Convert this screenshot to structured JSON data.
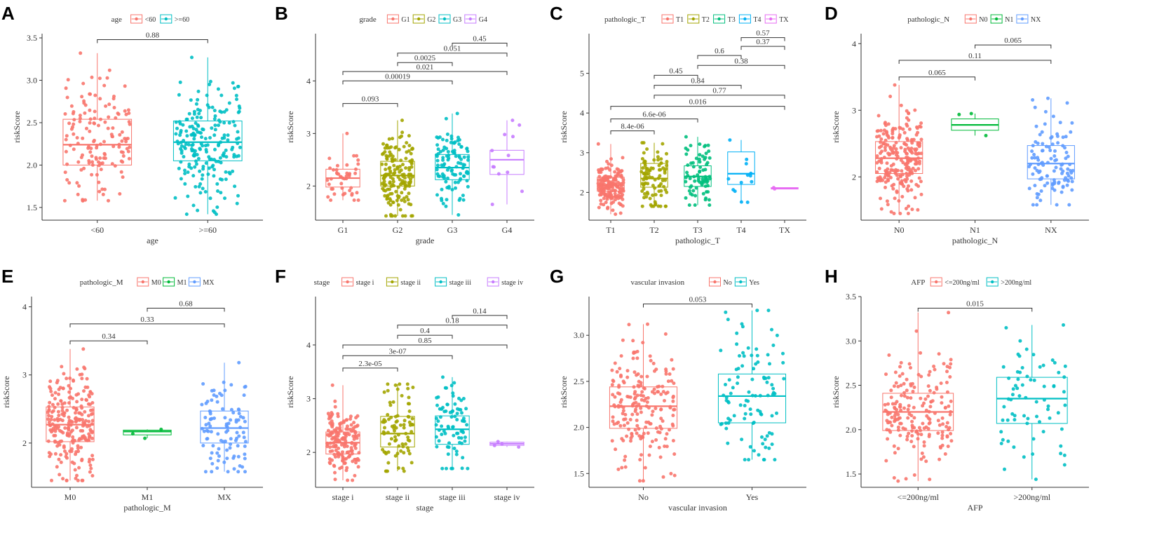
{
  "colors": {
    "red": "#F8766D",
    "olive": "#A3A500",
    "green": "#00BF7D",
    "green3": "#00BA38",
    "teal": "#00BFC4",
    "blue": "#00B0F6",
    "blue3": "#619CFF",
    "purple": "#C77CFF",
    "magenta": "#E76BF3"
  },
  "chart_data": [
    {
      "panel": "A",
      "type": "boxplot",
      "legend_title": "age",
      "xlabel": "age",
      "ylabel": "riskScore",
      "ylim": [
        1.35,
        3.55
      ],
      "yticks": [
        1.5,
        2.0,
        2.5,
        3.0,
        3.5
      ],
      "ytick_labels": [
        "1.5",
        "2.0",
        "2.5",
        "3.0",
        "3.5"
      ],
      "categories": [
        "<60",
        ">=60"
      ],
      "color_keys": [
        "red",
        "teal"
      ],
      "boxes": [
        {
          "q1": 2.0,
          "median": 2.24,
          "q3": 2.54,
          "lo": 1.58,
          "hi": 3.32,
          "n": 150
        },
        {
          "q1": 2.05,
          "median": 2.27,
          "q3": 2.52,
          "lo": 1.42,
          "hi": 3.27,
          "n": 210
        }
      ],
      "comparisons": [
        {
          "a": 0,
          "b": 1,
          "label": "0.88",
          "y": 3.48
        }
      ]
    },
    {
      "panel": "B",
      "type": "boxplot",
      "legend_title": "grade",
      "xlabel": "grade",
      "ylabel": "riskScore",
      "ylim": [
        1.35,
        4.9
      ],
      "yticks": [
        2,
        3,
        4
      ],
      "ytick_labels": [
        "2",
        "3",
        "4"
      ],
      "categories": [
        "G1",
        "G2",
        "G3",
        "G4"
      ],
      "color_keys": [
        "red",
        "olive",
        "teal",
        "purple"
      ],
      "boxes": [
        {
          "q1": 1.98,
          "median": 2.15,
          "q3": 2.32,
          "lo": 1.73,
          "hi": 3.0,
          "n": 45
        },
        {
          "q1": 2.0,
          "median": 2.2,
          "q3": 2.47,
          "lo": 1.43,
          "hi": 3.25,
          "n": 170
        },
        {
          "q1": 2.12,
          "median": 2.35,
          "q3": 2.6,
          "lo": 1.45,
          "hi": 3.38,
          "n": 110
        },
        {
          "q1": 2.22,
          "median": 2.5,
          "q3": 2.68,
          "lo": 1.65,
          "hi": 3.25,
          "n": 12
        }
      ],
      "comparisons": [
        {
          "a": 0,
          "b": 1,
          "label": "0.093",
          "y": 3.57
        },
        {
          "a": 0,
          "b": 2,
          "label": "0.00019",
          "y": 4.0
        },
        {
          "a": 0,
          "b": 3,
          "label": "0.021",
          "y": 4.18
        },
        {
          "a": 1,
          "b": 2,
          "label": "0.0025",
          "y": 4.35
        },
        {
          "a": 1,
          "b": 3,
          "label": "0.051",
          "y": 4.53
        },
        {
          "a": 2,
          "b": 3,
          "label": "0.45",
          "y": 4.72
        }
      ]
    },
    {
      "panel": "C",
      "type": "boxplot",
      "legend_title": "pathologic_T",
      "xlabel": "pathologic_T",
      "ylabel": "riskScore",
      "ylim": [
        1.3,
        6.0
      ],
      "yticks": [
        2,
        3,
        4,
        5
      ],
      "ytick_labels": [
        "2",
        "3",
        "4",
        "5"
      ],
      "categories": [
        "T1",
        "T2",
        "T3",
        "T4",
        "TX"
      ],
      "color_keys": [
        "red",
        "olive",
        "green",
        "blue",
        "magenta"
      ],
      "boxes": [
        {
          "q1": 2.03,
          "median": 2.18,
          "q3": 2.38,
          "lo": 1.45,
          "hi": 3.22,
          "n": 180
        },
        {
          "q1": 2.13,
          "median": 2.35,
          "q3": 2.73,
          "lo": 1.65,
          "hi": 3.25,
          "n": 90
        },
        {
          "q1": 2.15,
          "median": 2.4,
          "q3": 2.67,
          "lo": 1.68,
          "hi": 3.4,
          "n": 75
        },
        {
          "q1": 2.2,
          "median": 2.47,
          "q3": 3.02,
          "lo": 1.75,
          "hi": 3.32,
          "n": 13
        },
        {
          "q1": 2.1,
          "median": 2.1,
          "q3": 2.12,
          "lo": 2.09,
          "hi": 2.12,
          "n": 2
        }
      ],
      "comparisons": [
        {
          "a": 0,
          "b": 1,
          "label": "8.4e-06",
          "y": 3.55
        },
        {
          "a": 0,
          "b": 2,
          "label": "6.6e-06",
          "y": 3.85
        },
        {
          "a": 0,
          "b": 4,
          "label": "0.016",
          "y": 4.17
        },
        {
          "a": 1,
          "b": 4,
          "label": "0.77",
          "y": 4.45
        },
        {
          "a": 1,
          "b": 3,
          "label": "0.84",
          "y": 4.7
        },
        {
          "a": 1,
          "b": 2,
          "label": "0.45",
          "y": 4.95
        },
        {
          "a": 2,
          "b": 4,
          "label": "0.38",
          "y": 5.2
        },
        {
          "a": 2,
          "b": 3,
          "label": "0.6",
          "y": 5.45
        },
        {
          "a": 3,
          "b": 4,
          "label": "0.37",
          "y": 5.68
        },
        {
          "a": 3,
          "b": 4,
          "label": "0.57",
          "y": 5.9
        }
      ]
    },
    {
      "panel": "D",
      "type": "boxplot",
      "legend_title": "pathologic_N",
      "xlabel": "pathologic_N",
      "ylabel": "riskScore",
      "ylim": [
        1.35,
        4.15
      ],
      "yticks": [
        2,
        3,
        4
      ],
      "ytick_labels": [
        "2",
        "3",
        "4"
      ],
      "categories": [
        "N0",
        "N1",
        "NX"
      ],
      "color_keys": [
        "red",
        "green3",
        "blue3"
      ],
      "boxes": [
        {
          "q1": 2.05,
          "median": 2.28,
          "q3": 2.53,
          "lo": 1.45,
          "hi": 3.38,
          "n": 240
        },
        {
          "q1": 2.7,
          "median": 2.78,
          "q3": 2.87,
          "lo": 2.62,
          "hi": 2.95,
          "n": 3
        },
        {
          "q1": 1.97,
          "median": 2.2,
          "q3": 2.47,
          "lo": 1.58,
          "hi": 3.18,
          "n": 110
        }
      ],
      "comparisons": [
        {
          "a": 0,
          "b": 1,
          "label": "0.065",
          "y": 3.5
        },
        {
          "a": 0,
          "b": 2,
          "label": "0.11",
          "y": 3.75
        },
        {
          "a": 1,
          "b": 2,
          "label": "0.065",
          "y": 3.98
        }
      ]
    },
    {
      "panel": "E",
      "type": "boxplot",
      "legend_title": "pathologic_M",
      "xlabel": "pathologic_M",
      "ylabel": "riskScore",
      "ylim": [
        1.35,
        4.15
      ],
      "yticks": [
        2,
        3,
        4
      ],
      "ytick_labels": [
        "2",
        "3",
        "4"
      ],
      "categories": [
        "M0",
        "M1",
        "MX"
      ],
      "color_keys": [
        "red",
        "green3",
        "blue3"
      ],
      "boxes": [
        {
          "q1": 2.02,
          "median": 2.27,
          "q3": 2.53,
          "lo": 1.45,
          "hi": 3.38,
          "n": 240
        },
        {
          "q1": 2.12,
          "median": 2.17,
          "q3": 2.19,
          "lo": 2.07,
          "hi": 2.2,
          "n": 3
        },
        {
          "q1": 2.0,
          "median": 2.22,
          "q3": 2.47,
          "lo": 1.58,
          "hi": 3.18,
          "n": 100
        }
      ],
      "comparisons": [
        {
          "a": 0,
          "b": 1,
          "label": "0.34",
          "y": 3.5
        },
        {
          "a": 0,
          "b": 2,
          "label": "0.33",
          "y": 3.75
        },
        {
          "a": 1,
          "b": 2,
          "label": "0.68",
          "y": 3.98
        }
      ]
    },
    {
      "panel": "F",
      "type": "boxplot",
      "legend_title": "stage",
      "xlabel": "stage",
      "ylabel": "riskScore",
      "ylim": [
        1.35,
        4.9
      ],
      "yticks": [
        2,
        3,
        4
      ],
      "ytick_labels": [
        "2",
        "3",
        "4"
      ],
      "categories": [
        "stage i",
        "stage ii",
        "stage iii",
        "stage iv"
      ],
      "color_keys": [
        "red",
        "olive",
        "teal",
        "purple"
      ],
      "boxes": [
        {
          "q1": 1.97,
          "median": 2.18,
          "q3": 2.38,
          "lo": 1.48,
          "hi": 3.25,
          "n": 170
        },
        {
          "q1": 2.1,
          "median": 2.35,
          "q3": 2.67,
          "lo": 1.65,
          "hi": 3.27,
          "n": 85
        },
        {
          "q1": 2.15,
          "median": 2.43,
          "q3": 2.68,
          "lo": 1.7,
          "hi": 3.4,
          "n": 80
        },
        {
          "q1": 2.13,
          "median": 2.16,
          "q3": 2.19,
          "lo": 2.1,
          "hi": 2.2,
          "n": 4
        }
      ],
      "comparisons": [
        {
          "a": 0,
          "b": 1,
          "label": "2.3e-05",
          "y": 3.57
        },
        {
          "a": 0,
          "b": 2,
          "label": "3e-07",
          "y": 3.8
        },
        {
          "a": 0,
          "b": 3,
          "label": "0.85",
          "y": 4.0
        },
        {
          "a": 1,
          "b": 2,
          "label": "0.4",
          "y": 4.18
        },
        {
          "a": 1,
          "b": 3,
          "label": "0.18",
          "y": 4.37
        },
        {
          "a": 2,
          "b": 3,
          "label": "0.14",
          "y": 4.55
        }
      ]
    },
    {
      "panel": "G",
      "type": "boxplot",
      "legend_title": "vascular invasion",
      "xlabel": "vascular invasion",
      "ylabel": "riskScore",
      "ylim": [
        1.35,
        3.42
      ],
      "yticks": [
        1.5,
        2.0,
        2.5,
        3.0
      ],
      "ytick_labels": [
        "1.5",
        "2.0",
        "2.5",
        "3.0"
      ],
      "categories": [
        "No",
        "Yes"
      ],
      "color_keys": [
        "red",
        "teal"
      ],
      "boxes": [
        {
          "q1": 1.99,
          "median": 2.23,
          "q3": 2.44,
          "lo": 1.42,
          "hi": 3.12,
          "n": 200
        },
        {
          "q1": 2.05,
          "median": 2.34,
          "q3": 2.58,
          "lo": 1.65,
          "hi": 3.27,
          "n": 100
        }
      ],
      "comparisons": [
        {
          "a": 0,
          "b": 1,
          "label": "0.053",
          "y": 3.34
        }
      ]
    },
    {
      "panel": "H",
      "type": "boxplot",
      "legend_title": "AFP",
      "xlabel": "AFP",
      "ylabel": "riskScore",
      "ylim": [
        1.35,
        3.5
      ],
      "yticks": [
        1.5,
        2.0,
        2.5,
        3.0,
        3.5
      ],
      "ytick_labels": [
        "1.5",
        "2.0",
        "2.5",
        "3.0",
        "3.5"
      ],
      "categories": [
        "<=200ng/ml",
        ">200ng/ml"
      ],
      "color_keys": [
        "red",
        "teal"
      ],
      "boxes": [
        {
          "q1": 1.99,
          "median": 2.2,
          "q3": 2.41,
          "lo": 1.42,
          "hi": 3.32,
          "n": 190
        },
        {
          "q1": 2.07,
          "median": 2.35,
          "q3": 2.59,
          "lo": 1.44,
          "hi": 3.18,
          "n": 70
        }
      ],
      "comparisons": [
        {
          "a": 0,
          "b": 1,
          "label": "0.015",
          "y": 3.37
        }
      ]
    }
  ]
}
